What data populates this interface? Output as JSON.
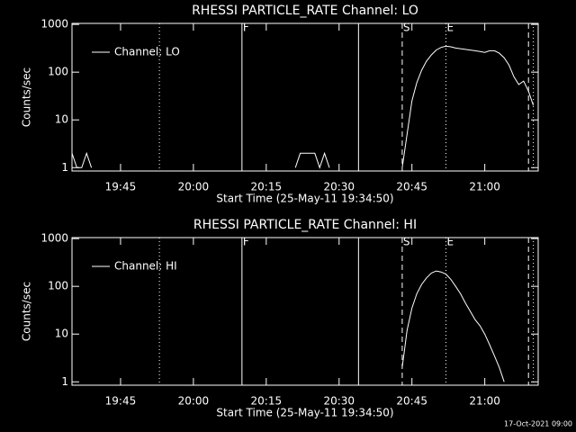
{
  "timestamp": "17-Oct-2021 09:00",
  "chart_data": [
    {
      "type": "line",
      "title": "RHESSI PARTICLE_RATE Channel: LO",
      "xlabel": "Start Time (25-May-11 19:34:50)",
      "ylabel": "Counts/sec",
      "log_y": true,
      "legend": "upper left",
      "xlim": [
        "19:35",
        "21:11"
      ],
      "xticks": [
        "19:45",
        "20:00",
        "20:15",
        "20:30",
        "20:45",
        "21:00"
      ],
      "ylim": [
        0.85,
        1050
      ],
      "yticks": [
        1,
        10,
        100,
        1000
      ],
      "markers": [
        {
          "x": "19:53",
          "line_style": "dotted"
        },
        {
          "x": "20:10",
          "line_style": "solid",
          "label": "F"
        },
        {
          "x": "20:34",
          "line_style": "solid"
        },
        {
          "x": "20:43",
          "line_style": "dashed",
          "label": "S"
        },
        {
          "x": "20:52",
          "line_style": "dotted",
          "label": "E"
        },
        {
          "x": "21:09",
          "line_style": "dashed"
        },
        {
          "x": "21:10",
          "line_style": "dotted"
        }
      ],
      "x": [
        "19:35",
        "19:36",
        "19:37",
        "19:38",
        "19:39",
        "19:40",
        "20:21",
        "20:22",
        "20:23",
        "20:24",
        "20:25",
        "20:26",
        "20:27",
        "20:28",
        "20:29",
        "20:43",
        "20:44",
        "20:45",
        "20:46",
        "20:47",
        "20:48",
        "20:49",
        "20:50",
        "20:51",
        "20:52",
        "20:53",
        "20:54",
        "20:55",
        "20:56",
        "20:57",
        "20:58",
        "20:59",
        "21:00",
        "21:01",
        "21:02",
        "21:03",
        "21:04",
        "21:05",
        "21:06",
        "21:07",
        "21:08",
        "21:09",
        "21:10"
      ],
      "series": [
        {
          "name": "Channel: LO",
          "color": "#ffffff",
          "values": [
            2,
            1,
            1,
            2,
            1,
            null,
            1,
            2,
            2,
            2,
            2,
            1,
            2,
            1,
            null,
            1,
            5,
            25,
            60,
            110,
            170,
            230,
            290,
            330,
            350,
            340,
            320,
            310,
            300,
            290,
            280,
            270,
            260,
            280,
            280,
            250,
            200,
            140,
            80,
            55,
            65,
            40,
            20
          ]
        }
      ]
    },
    {
      "type": "line",
      "title": "RHESSI PARTICLE_RATE Channel: HI",
      "xlabel": "Start Time (25-May-11 19:34:50)",
      "ylabel": "Counts/sec",
      "log_y": true,
      "legend": "upper left",
      "xlim": [
        "19:35",
        "21:11"
      ],
      "xticks": [
        "19:45",
        "20:00",
        "20:15",
        "20:30",
        "20:45",
        "21:00"
      ],
      "ylim": [
        0.85,
        1050
      ],
      "yticks": [
        1,
        10,
        100,
        1000
      ],
      "markers": [
        {
          "x": "19:53",
          "line_style": "dotted"
        },
        {
          "x": "20:10",
          "line_style": "solid",
          "label": "F"
        },
        {
          "x": "20:34",
          "line_style": "solid"
        },
        {
          "x": "20:43",
          "line_style": "dashed",
          "label": "S"
        },
        {
          "x": "20:52",
          "line_style": "dotted",
          "label": "E"
        },
        {
          "x": "21:09",
          "line_style": "dashed"
        },
        {
          "x": "21:10",
          "line_style": "dotted"
        }
      ],
      "x": [
        "20:43",
        "20:44",
        "20:45",
        "20:46",
        "20:47",
        "20:48",
        "20:49",
        "20:50",
        "20:51",
        "20:52",
        "20:53",
        "20:54",
        "20:55",
        "20:56",
        "20:57",
        "20:58",
        "20:59",
        "21:00",
        "21:01",
        "21:02",
        "21:03",
        "21:04"
      ],
      "series": [
        {
          "name": "Channel: HI",
          "color": "#ffffff",
          "values": [
            2,
            12,
            35,
            70,
            110,
            150,
            190,
            210,
            200,
            180,
            140,
            100,
            70,
            45,
            30,
            20,
            15,
            10,
            6,
            3.5,
            2,
            1
          ]
        }
      ]
    }
  ]
}
